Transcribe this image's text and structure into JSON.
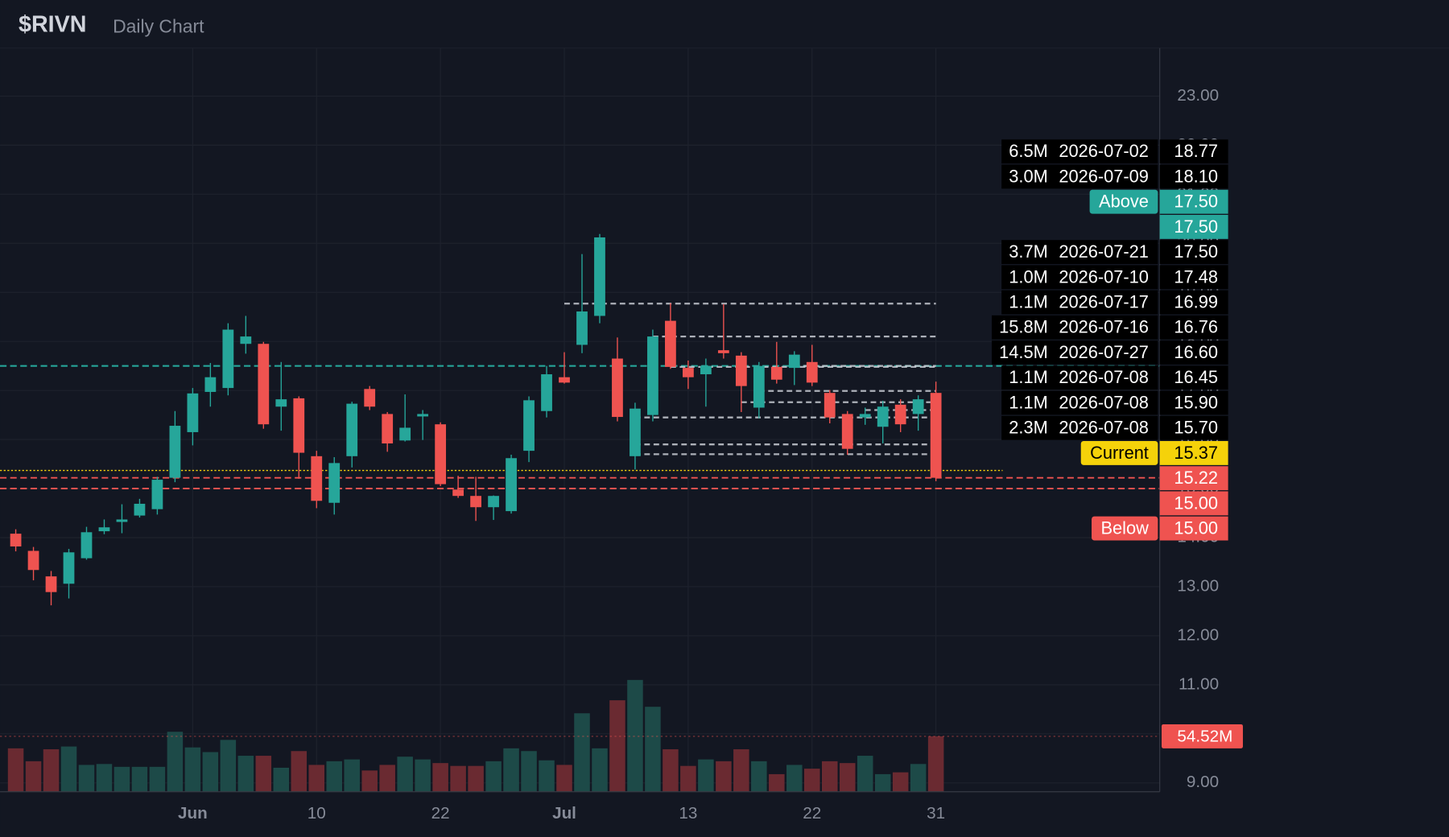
{
  "chart_data": {
    "type": "candlestick",
    "title": "$RIVN",
    "subtitle": "Daily Chart",
    "categories": [
      null,
      null,
      null,
      null,
      null,
      null,
      null,
      null,
      null,
      null,
      "Jun",
      null,
      null,
      null,
      null,
      null,
      null,
      "10",
      null,
      null,
      null,
      null,
      null,
      null,
      "22",
      null,
      null,
      null,
      null,
      null,
      null,
      "Jul",
      null,
      null,
      null,
      null,
      null,
      null,
      "13",
      null,
      null,
      null,
      null,
      null,
      null,
      "22",
      null,
      null,
      null,
      null,
      null,
      null,
      "31"
    ],
    "open": [
      14.08,
      13.73,
      13.21,
      13.06,
      13.58,
      14.13,
      14.32,
      14.45,
      14.58,
      15.22,
      16.15,
      16.97,
      17.05,
      17.95,
      17.95,
      16.67,
      16.84,
      15.66,
      14.71,
      15.66,
      17.03,
      16.52,
      15.98,
      16.47,
      16.31,
      14.98,
      14.85,
      14.62,
      14.54,
      15.77,
      16.58,
      17.27,
      17.93,
      18.52,
      17.65,
      15.66,
      16.5,
      18.42,
      17.46,
      17.33,
      17.82,
      17.71,
      16.65,
      17.48,
      17.46,
      17.58,
      16.95,
      16.52,
      16.45,
      16.26,
      16.71,
      16.52,
      16.95
    ],
    "high": [
      14.17,
      13.81,
      13.32,
      13.77,
      14.22,
      14.37,
      14.68,
      14.79,
      15.24,
      16.58,
      17.05,
      17.56,
      18.37,
      18.52,
      17.99,
      17.58,
      16.88,
      15.77,
      15.64,
      16.77,
      17.09,
      16.56,
      16.92,
      16.6,
      16.35,
      15.26,
      15.24,
      14.86,
      15.69,
      16.88,
      17.5,
      17.78,
      19.78,
      20.19,
      18.08,
      16.75,
      18.24,
      18.78,
      17.61,
      17.65,
      18.76,
      17.78,
      17.58,
      17.99,
      17.8,
      17.93,
      17.01,
      16.58,
      16.65,
      16.79,
      16.82,
      16.9,
      17.18
    ],
    "low": [
      13.72,
      13.13,
      12.62,
      12.76,
      13.55,
      14.07,
      14.09,
      14.41,
      14.47,
      15.13,
      15.88,
      16.67,
      16.9,
      17.75,
      16.22,
      16.18,
      15.2,
      14.6,
      14.47,
      15.43,
      16.6,
      15.75,
      15.96,
      15.99,
      15.05,
      14.81,
      14.34,
      14.36,
      14.49,
      15.54,
      16.45,
      17.14,
      17.76,
      18.37,
      16.37,
      15.39,
      16.37,
      17.44,
      17.03,
      16.67,
      17.65,
      16.56,
      16.43,
      17.14,
      17.11,
      17.09,
      16.33,
      15.69,
      16.3,
      15.92,
      16.15,
      16.18,
      15.15
    ],
    "close": [
      13.82,
      13.34,
      12.89,
      13.7,
      14.11,
      14.21,
      14.37,
      14.69,
      15.18,
      16.28,
      16.94,
      17.27,
      18.24,
      18.1,
      16.31,
      16.82,
      15.73,
      14.75,
      15.52,
      16.73,
      16.67,
      15.92,
      16.24,
      16.52,
      15.09,
      14.85,
      14.62,
      14.85,
      15.62,
      16.8,
      17.33,
      17.16,
      18.61,
      20.12,
      16.46,
      16.63,
      18.1,
      17.48,
      17.27,
      17.5,
      17.76,
      17.09,
      17.5,
      17.22,
      17.73,
      17.16,
      16.45,
      15.81,
      16.52,
      16.67,
      16.31,
      16.82,
      15.22
    ],
    "volume": [
      42.7,
      30,
      41.8,
      44.5,
      26.4,
      27.3,
      24.5,
      24.5,
      24.5,
      59,
      43.6,
      39,
      51,
      35.4,
      35.4,
      23.6,
      40,
      26.4,
      30,
      31.8,
      20.9,
      26.4,
      34.5,
      31.8,
      28.2,
      25.4,
      25.4,
      30,
      42.7,
      40,
      30.9,
      26.4,
      77.2,
      42.7,
      90,
      110,
      83.6,
      41.8,
      25.4,
      31.8,
      30,
      41.8,
      30,
      17.3,
      26.4,
      22.7,
      30,
      28.2,
      35.4,
      17.3,
      19.1,
      27.3,
      54.52
    ],
    "volume_label": "54.52M",
    "up_color": "#26a69a",
    "down_color": "#ef5350",
    "volume_up_color": "#1d4a48",
    "volume_down_color": "#6a2a31",
    "ylim": [
      8.82,
      23.98
    ],
    "yticks": [
      {
        "value": 9,
        "label": "9.00"
      },
      {
        "value": 10,
        "label": "10.00"
      },
      {
        "value": 11,
        "label": "11.00"
      },
      {
        "value": 12,
        "label": "12.00"
      },
      {
        "value": 13,
        "label": "13.00"
      },
      {
        "value": 14,
        "label": "14.00"
      },
      {
        "value": 15,
        "label": "15.00"
      },
      {
        "value": 16,
        "label": "16.00"
      },
      {
        "value": 17,
        "label": "17.00"
      },
      {
        "value": 18,
        "label": "18.00"
      },
      {
        "value": 19,
        "label": "19.00"
      },
      {
        "value": 20,
        "label": "20.00"
      },
      {
        "value": 21,
        "label": "21.00"
      },
      {
        "value": 22,
        "label": "22.00"
      },
      {
        "value": 23,
        "label": "23.00"
      }
    ],
    "grid": true,
    "levels": [
      {
        "size": "6.5M",
        "date": "2026-07-02",
        "price": 18.77
      },
      {
        "size": "3.0M",
        "date": "2026-07-09",
        "price": 18.1,
        "price_label": "18.10"
      },
      {
        "tag": "Above",
        "price": 17.5,
        "price_label": "17.50",
        "color": "#26a69a"
      },
      {
        "price": 17.5,
        "price_label": "17.50",
        "color": "#26a69a"
      },
      {
        "size": "3.7M",
        "date": "2026-07-21",
        "price": 17.5,
        "price_label": "17.50"
      },
      {
        "size": "1.0M",
        "date": "2026-07-10",
        "price": 17.48
      },
      {
        "size": "1.1M",
        "date": "2026-07-17",
        "price": 16.99
      },
      {
        "size": "15.8M",
        "date": "2026-07-16",
        "price": 16.76
      },
      {
        "size": "14.5M",
        "date": "2026-07-27",
        "price": 16.6,
        "price_label": "16.60"
      },
      {
        "size": "1.1M",
        "date": "2026-07-08",
        "price": 16.45
      },
      {
        "size": "1.1M",
        "date": "2026-07-08",
        "price": 15.9,
        "price_label": "15.90"
      },
      {
        "size": "2.3M",
        "date": "2026-07-08",
        "price": 15.7,
        "price_label": "15.70"
      },
      {
        "tag": "Current",
        "price": 15.37,
        "color": "#f5d20a"
      },
      {
        "price": 15.22,
        "color": "#ef5350"
      },
      {
        "price": 15,
        "price_label": "15.00",
        "color": "#ef5350"
      },
      {
        "tag": "Below",
        "price": 15,
        "price_label": "15.00",
        "color": "#ef5350"
      }
    ]
  }
}
